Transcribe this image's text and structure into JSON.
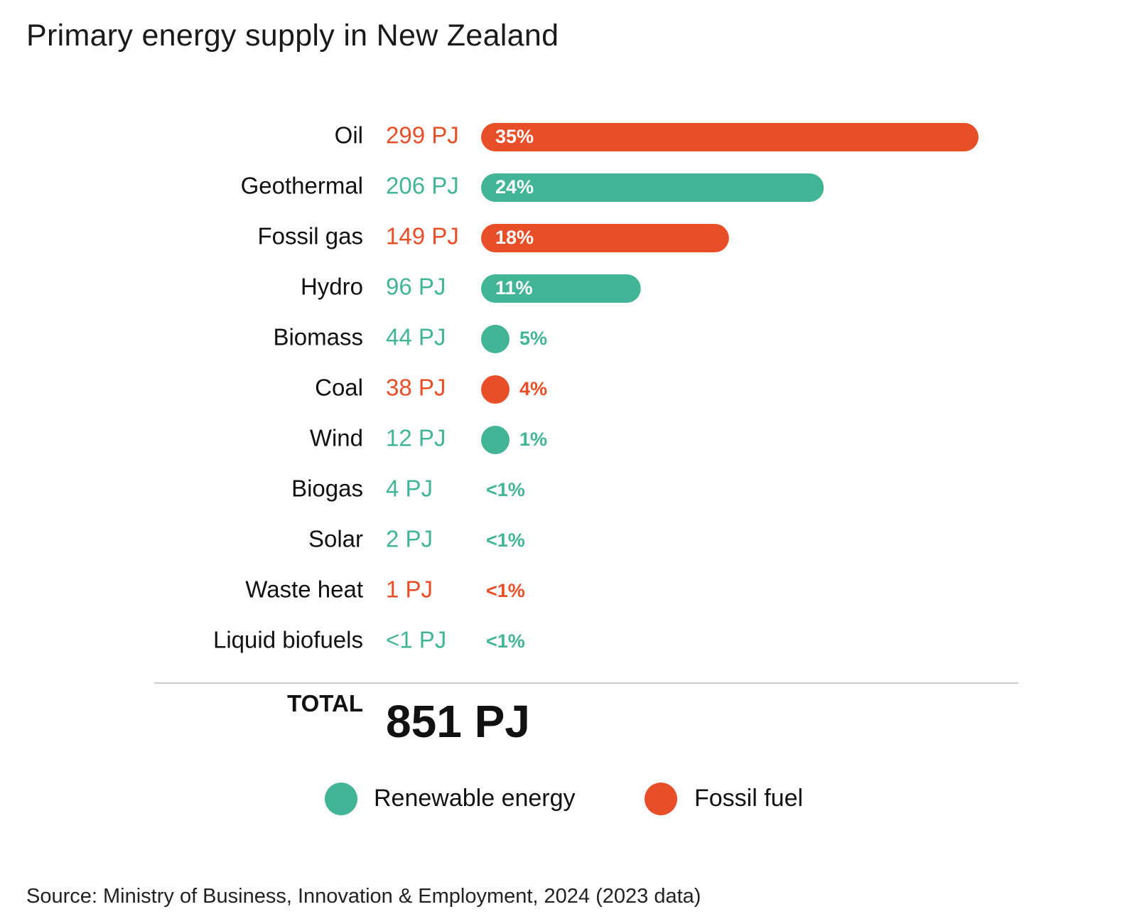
{
  "title": "Primary energy supply in New Zealand",
  "source": "Source: Ministry of Business, Innovation & Employment, 2024 (2023 data)",
  "colors": {
    "renewable": "#43b597",
    "fossil": "#e84e27",
    "text": "#111111",
    "rule": "#bbbbbb"
  },
  "chart_data": {
    "type": "bar",
    "orientation": "horizontal",
    "unit": "PJ",
    "categories": [
      "Oil",
      "Geothermal",
      "Fossil gas",
      "Hydro",
      "Biomass",
      "Coal",
      "Wind",
      "Biogas",
      "Solar",
      "Waste heat",
      "Liquid biofuels"
    ],
    "values": [
      299,
      206,
      149,
      96,
      44,
      38,
      12,
      4,
      2,
      1,
      0.5
    ],
    "value_labels": [
      "299 PJ",
      "206 PJ",
      "149 PJ",
      "96 PJ",
      "44 PJ",
      "38 PJ",
      "12 PJ",
      "4 PJ",
      "2 PJ",
      "1 PJ",
      "<1 PJ"
    ],
    "percent_labels": [
      "35%",
      "24%",
      "18%",
      "11%",
      "5%",
      "4%",
      "1%",
      "<1%",
      "<1%",
      "<1%",
      "<1%"
    ],
    "groups": [
      "fossil",
      "renewable",
      "fossil",
      "renewable",
      "renewable",
      "fossil",
      "renewable",
      "renewable",
      "renewable",
      "fossil",
      "renewable"
    ],
    "total": {
      "label": "TOTAL",
      "value": "851 PJ"
    },
    "legend": [
      {
        "key": "renewable",
        "label": "Renewable energy"
      },
      {
        "key": "fossil",
        "label": "Fossil fuel"
      }
    ],
    "legend_position": "bottom",
    "grid": false
  }
}
